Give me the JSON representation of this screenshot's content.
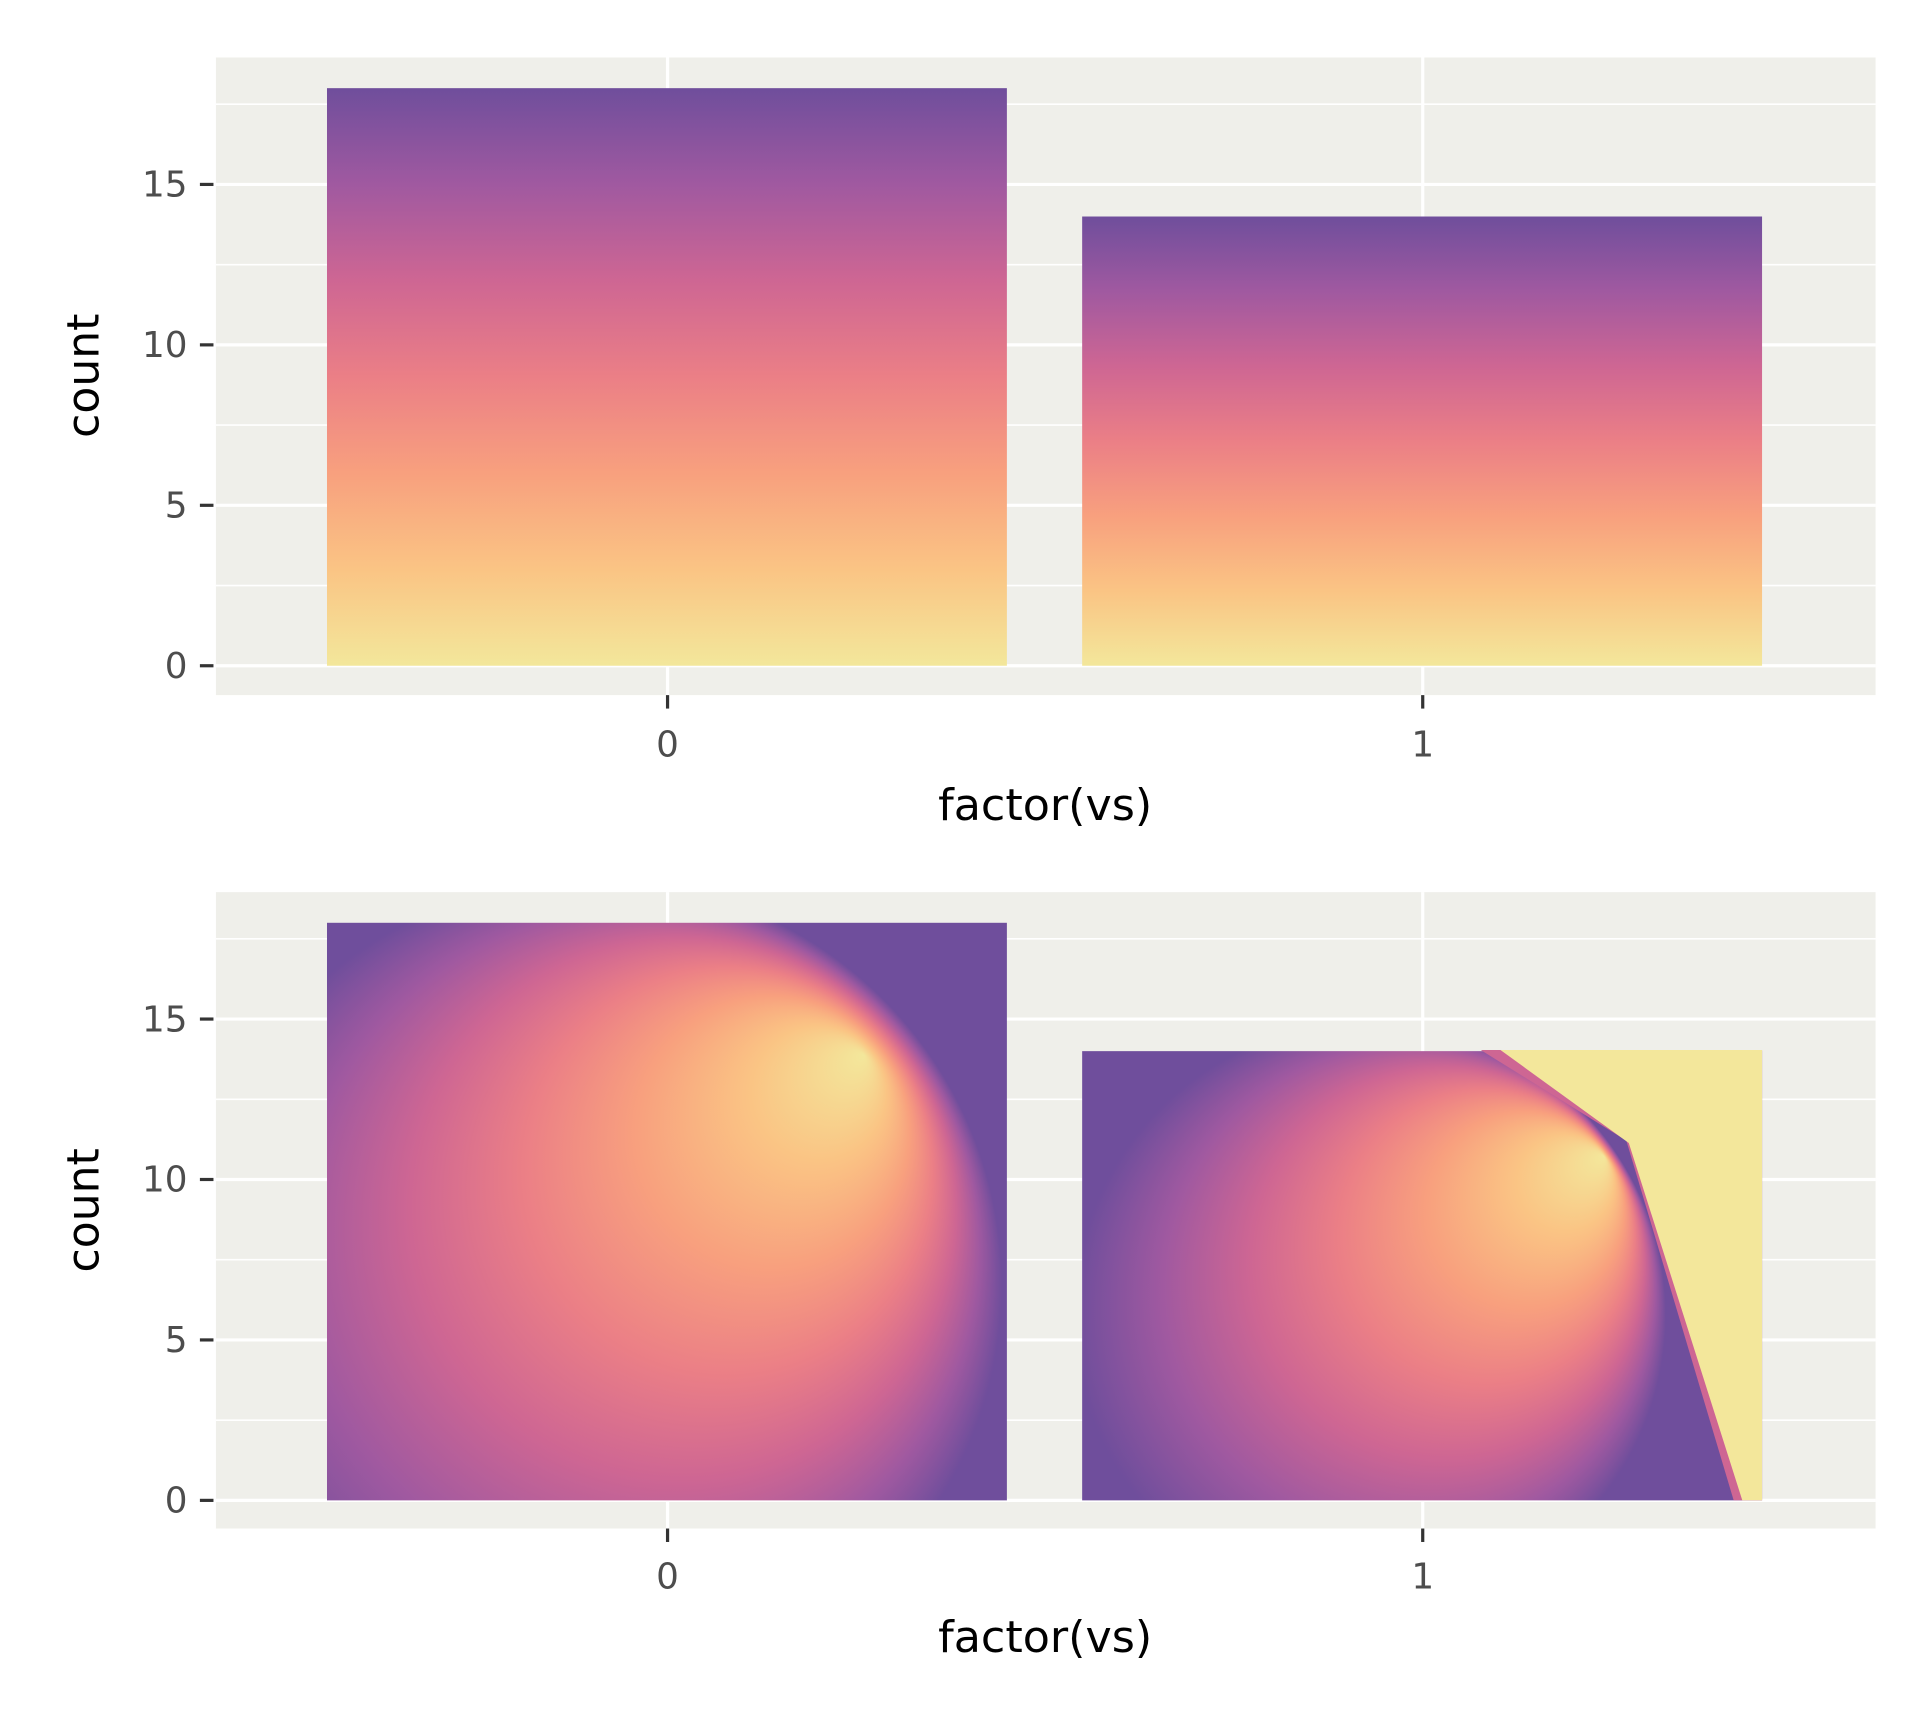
{
  "chart_data": [
    {
      "type": "bar",
      "fill_style": "linear-gradient-vertical",
      "categories": [
        "0",
        "1"
      ],
      "values": [
        18,
        14
      ],
      "xlabel": "factor(vs)",
      "ylabel": "count",
      "ylim": [
        0,
        19
      ],
      "yticks": [
        "0",
        "5",
        "10",
        "15"
      ],
      "ytick_values": [
        0,
        5,
        10,
        15
      ],
      "grid": true
    },
    {
      "type": "bar",
      "fill_style": "radial-gradient",
      "categories": [
        "0",
        "1"
      ],
      "values": [
        18,
        14
      ],
      "xlabel": "factor(vs)",
      "ylabel": "count",
      "ylim": [
        0,
        19
      ],
      "yticks": [
        "0",
        "5",
        "10",
        "15"
      ],
      "ytick_values": [
        0,
        5,
        10,
        15
      ],
      "grid": true
    }
  ],
  "colors": {
    "panel_bg": "#efefea",
    "grid": "#ffffff",
    "gradient": [
      "#f3e79b",
      "#fac484",
      "#f8a07e",
      "#eb7f86",
      "#ce6693",
      "#a059a0",
      "#6f4e9c"
    ]
  }
}
